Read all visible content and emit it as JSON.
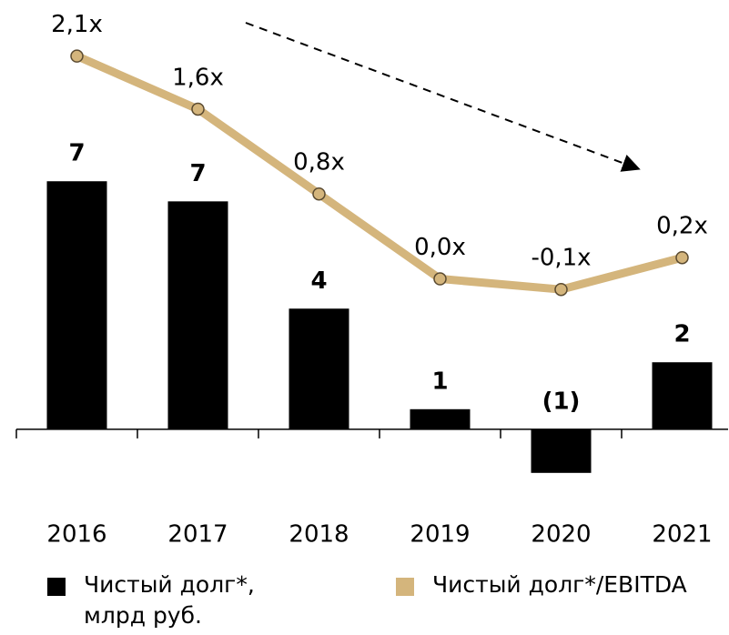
{
  "chart_data": {
    "type": "bar_line",
    "categories": [
      "2016",
      "2017",
      "2018",
      "2019",
      "2020",
      "2021"
    ],
    "series": [
      {
        "name": "Чистый долг*, млрд руб.",
        "type": "bar",
        "color": "#000000",
        "values": [
          7.4,
          6.8,
          3.6,
          0.6,
          -1.3,
          2.0
        ],
        "value_labels": [
          "7",
          "7",
          "4",
          "1",
          "(1)",
          "2"
        ]
      },
      {
        "name": "Чистый долг*/EBITDA",
        "type": "line",
        "axis": "y2",
        "color": "#d4b57c",
        "values": [
          2.1,
          1.6,
          0.8,
          0.0,
          -0.1,
          0.2
        ],
        "value_labels": [
          "2,1x",
          "1,6x",
          "0,8x",
          "0,0x",
          "-0,1x",
          "0,2x"
        ]
      }
    ],
    "ylim": [
      -2,
      12.4
    ],
    "y2lim": [
      -2.05,
      2.5
    ]
  }
}
